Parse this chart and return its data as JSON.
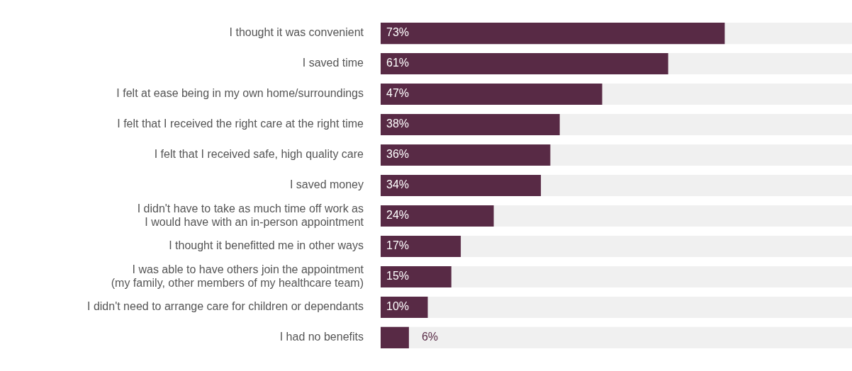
{
  "chart_data": {
    "type": "bar",
    "orientation": "horizontal",
    "categories": [
      "I thought it was convenient",
      "I saved time",
      "I felt at ease being in my own home/surroundings",
      "I felt that I received the right care at the right time",
      "I felt that I received safe, high quality care",
      "I saved money",
      "I didn't have to take as much time off work as\nI would have with an in-person appointment",
      "I thought it benefitted me in other ways",
      "I was able to have others join the appointment\n(my family, other members of my healthcare team)",
      "I didn't need to arrange care for children or dependants",
      "I had no benefits"
    ],
    "values": [
      73,
      61,
      47,
      38,
      36,
      34,
      24,
      17,
      15,
      10,
      6
    ],
    "value_labels": [
      "73%",
      "61%",
      "47%",
      "38%",
      "36%",
      "34%",
      "24%",
      "17%",
      "15%",
      "10%",
      "6%"
    ],
    "color": "#582a45",
    "xlim": [
      0,
      100
    ],
    "bands": [
      {
        "axis": "x",
        "from": 0,
        "to": 100,
        "color": "#f0f0f0"
      }
    ],
    "tick_labels": "y",
    "legend": false
  }
}
